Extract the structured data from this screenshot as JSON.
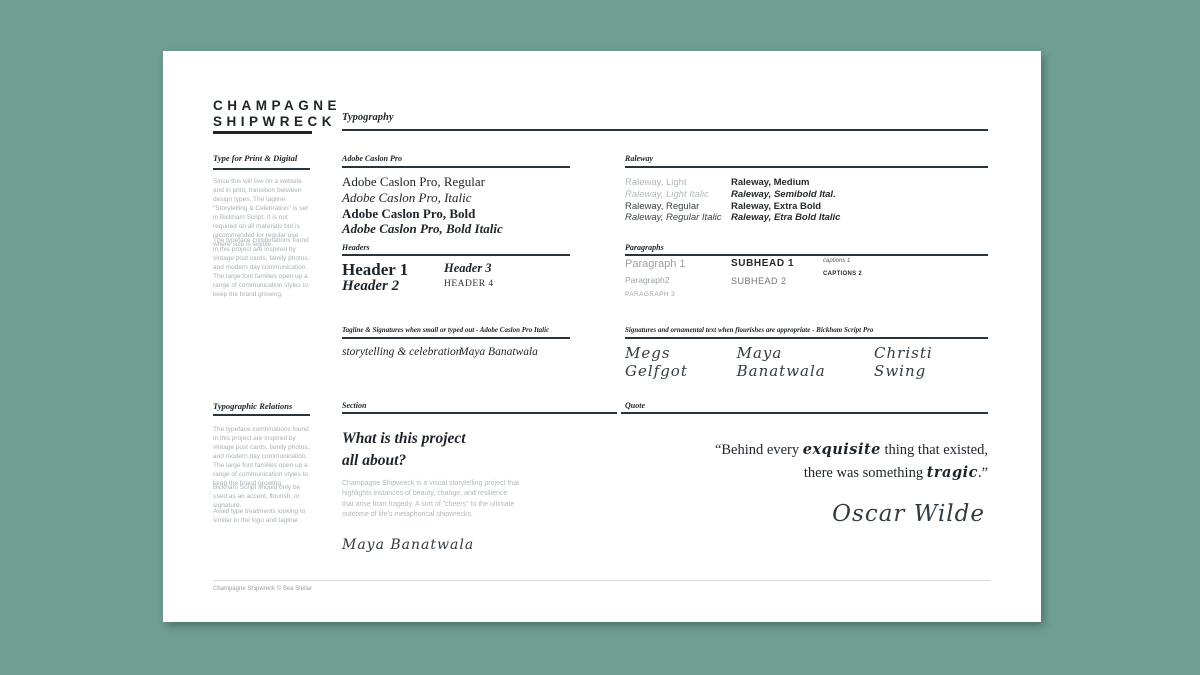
{
  "colors": {
    "background": "#6f9e93",
    "ink": "#1d242b",
    "gray_text": "#a9b0b5",
    "light_rule": "#dadada"
  },
  "logo": {
    "line1": "CHAMPAGNE",
    "line2": "SHIPWRECK"
  },
  "header": {
    "label": "Typography"
  },
  "sidebar_top": {
    "label": "Type for Print & Digital",
    "para1": "Since this will live on a website and in print, transition between design types. The tagline \"Storytelling & Celebration\" is set in Bickham Script. It is not required on all materials but is recommended for regular use where size is legible.",
    "para2": "The typeface combinations found in this project are inspired by vintage post cards, family photos, and modern day communication. The large font families open up a range of communication styles to keep the brand growing."
  },
  "caslon": {
    "label": "Adobe Caslon Pro",
    "specimens": [
      "Adobe Caslon Pro, Regular",
      "Adobe Caslon Pro, Italic",
      "Adobe Caslon Pro, Bold",
      "Adobe Caslon Pro, Bold Italic"
    ]
  },
  "raleway": {
    "label": "Raleway",
    "col1": [
      "Raleway, Light",
      "Raleway, Light Italic",
      "Raleway, Regular",
      "Raleway, Regular Italic"
    ],
    "col2": [
      "Raleway, Medium",
      "Raleway, Semibold Ital.",
      "Raleway, Extra Bold",
      "Raleway, Etra Bold Italic"
    ]
  },
  "headers": {
    "label": "Headers",
    "h1": "Header 1",
    "h2": "Header 2",
    "h3": "Header 3",
    "h4": "HEADER 4"
  },
  "paragraphs": {
    "label": "Paragraphs",
    "p1": "Paragraph 1",
    "p2": "Paragraph2",
    "p3": "PARAGRAPH 3",
    "sub1": "SUBHEAD 1",
    "sub2": "SUBHEAD 2",
    "cap1": "captions 1",
    "cap2": "CAPTIONS 2"
  },
  "tagline": {
    "label": "Tagline & Signatures when small or typed out - Adobe Caslon Pro Italic",
    "item1": "storytelling & celebration",
    "item2": "Maya Banatwala"
  },
  "signatures": {
    "label": "Signatures and ornamental text when flourishes are appropriate - Bickham Script Pro",
    "names": [
      "Megs Gelfgot",
      "Maya Banatwala",
      "Christi Swing"
    ]
  },
  "sidebar_bottom": {
    "label": "Typographic Relations",
    "para1": "The typeface combinations found in this project are inspired by vintage post cards, family photos, and modern day communication. The large font families open up a range of communication styles to keep the brand growing.",
    "para2": "Bickham Script should only be used as an accent, flourish, or signature.",
    "para3": "Avoid type treatments looking to similar to the logo and tagline."
  },
  "section": {
    "label": "Section",
    "heading": "What is this project\nall about?",
    "body": "Champagne Shipwreck is a  visual storytelling project that highlights instances of beauty, change, and resilience that arise from tragedy. A sort of \"cheers\" to the ultimate outcome of life's metaphorical shipwrecks.",
    "signature": "Maya Banatwala"
  },
  "quote": {
    "label": "Quote",
    "q1": "“Behind every ",
    "em1": "exquisite",
    "q2": " thing that existed,",
    "q3": "there was something ",
    "em2": "tragic",
    "q4": ".”",
    "attribution": "Oscar Wilde"
  },
  "footer": {
    "text": "Champagne Shipwreck © Sea Stellar"
  }
}
